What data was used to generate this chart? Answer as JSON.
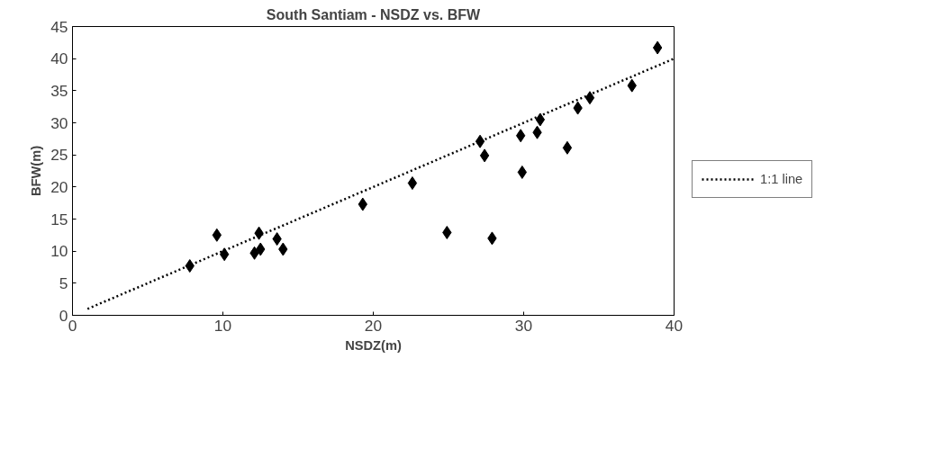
{
  "chart_data": {
    "type": "scatter",
    "title": "South Santiam - NSDZ vs. BFW",
    "xlabel": "NSDZ(m)",
    "ylabel": "BFW(m)",
    "xlim": [
      0,
      40
    ],
    "ylim": [
      0,
      45
    ],
    "xticks": [
      0,
      10,
      20,
      30,
      40
    ],
    "yticks": [
      0,
      5,
      10,
      15,
      20,
      25,
      30,
      35,
      40,
      45
    ],
    "grid": false,
    "legend": "right",
    "series": [
      {
        "marker": "diamond",
        "color": "#000000",
        "x": [
          7.8,
          9.6,
          10.1,
          12.1,
          12.4,
          12.5,
          13.6,
          14,
          19.3,
          22.6,
          24.9,
          27.1,
          27.4,
          27.9,
          29.8,
          29.9,
          30.9,
          31.1,
          32.9,
          33.6,
          34.4,
          37.2,
          38.9
        ],
        "values": [
          7.7,
          12.5,
          9.5,
          9.7,
          12.8,
          10.3,
          11.9,
          10.3,
          17.3,
          20.6,
          12.9,
          27.1,
          24.9,
          12,
          28,
          22.3,
          28.5,
          30.5,
          26.1,
          32.3,
          33.9,
          35.8,
          41.7
        ]
      },
      {
        "type": "line",
        "name": "1:1 line",
        "color": "#000000",
        "line_style": "dotted",
        "x": [
          1,
          40
        ],
        "values": [
          1,
          40
        ]
      }
    ]
  }
}
